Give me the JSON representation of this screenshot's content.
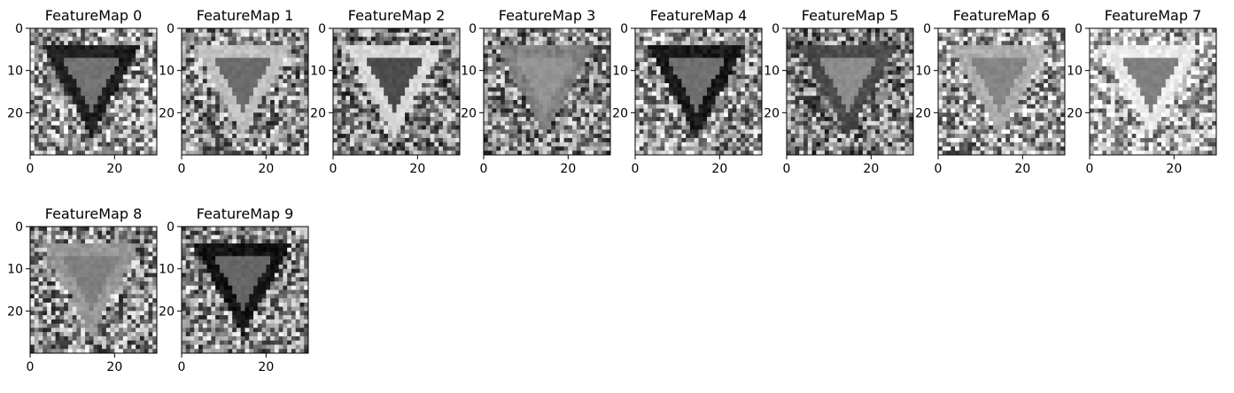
{
  "chart_data": {
    "type": "heatmap",
    "colormap": "gray",
    "x_ticks": [
      "0",
      "20"
    ],
    "y_ticks": [
      "0",
      "10",
      "20"
    ],
    "xlim": [
      0,
      30
    ],
    "ylim": [
      30,
      0
    ],
    "grid": false,
    "legend": "none",
    "subplots": [
      {
        "title": "FeatureMap 0",
        "edge": 0.12,
        "inner": 0.45,
        "bg": 0.6
      },
      {
        "title": "FeatureMap 1",
        "edge": 0.75,
        "inner": 0.42,
        "bg": 0.55
      },
      {
        "title": "FeatureMap 2",
        "edge": 0.85,
        "inner": 0.3,
        "bg": 0.5
      },
      {
        "title": "FeatureMap 3",
        "edge": 0.5,
        "inner": 0.58,
        "bg": 0.52
      },
      {
        "title": "FeatureMap 4",
        "edge": 0.1,
        "inner": 0.44,
        "bg": 0.58
      },
      {
        "title": "FeatureMap 5",
        "edge": 0.3,
        "inner": 0.55,
        "bg": 0.5
      },
      {
        "title": "FeatureMap 6",
        "edge": 0.68,
        "inner": 0.52,
        "bg": 0.6
      },
      {
        "title": "FeatureMap 7",
        "edge": 0.92,
        "inner": 0.5,
        "bg": 0.68
      },
      {
        "title": "FeatureMap 8",
        "edge": 0.6,
        "inner": 0.5,
        "bg": 0.55
      },
      {
        "title": "FeatureMap 9",
        "edge": 0.08,
        "inner": 0.4,
        "bg": 0.55
      }
    ]
  }
}
